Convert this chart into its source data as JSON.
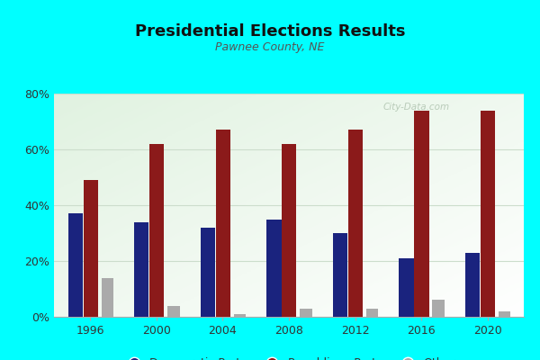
{
  "title": "Presidential Elections Results",
  "subtitle": "Pawnee County, NE",
  "years": [
    1996,
    2000,
    2004,
    2008,
    2012,
    2016,
    2020
  ],
  "democratic": [
    0.37,
    0.34,
    0.32,
    0.35,
    0.3,
    0.21,
    0.23
  ],
  "republican": [
    0.49,
    0.62,
    0.67,
    0.62,
    0.67,
    0.74,
    0.74
  ],
  "other": [
    0.14,
    0.04,
    0.01,
    0.03,
    0.03,
    0.06,
    0.02
  ],
  "dem_color": "#1a237e",
  "rep_color": "#8b1a1a",
  "other_color": "#aaaaaa",
  "outer_bg": "#00ffff",
  "ylim": [
    0,
    0.8
  ],
  "yticks": [
    0,
    0.2,
    0.4,
    0.6,
    0.8
  ],
  "ytick_labels": [
    "0%",
    "20%",
    "40%",
    "60%",
    "80%"
  ],
  "bar_width": 0.22,
  "watermark": "City-Data.com",
  "grid_color": "#ccddcc",
  "spine_color": "#aaaaaa"
}
